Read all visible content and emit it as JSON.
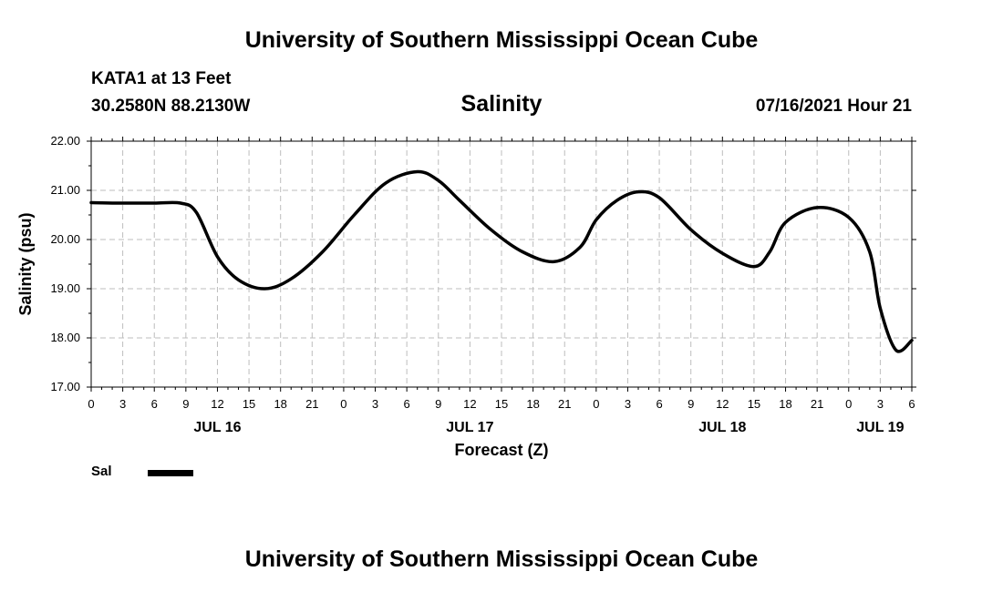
{
  "header": {
    "top_title": "University of Southern Mississippi Ocean Cube",
    "station": "KATA1 at 13 Feet",
    "coords": "30.2580N  88.2130W",
    "chart_title": "Salinity",
    "run_time": "07/16/2021 Hour 21",
    "bottom_title": "University of Southern Mississippi Ocean Cube"
  },
  "legend": {
    "label": "Sal"
  },
  "colors": {
    "line": "#000000",
    "grid": "#bdbdbd",
    "background": "#ffffff"
  },
  "chart_data": {
    "type": "line",
    "title": "Salinity",
    "xlabel": "Forecast (Z)",
    "ylabel": "Salinity (psu)",
    "ylim": [
      17.0,
      22.0
    ],
    "xlim_hours": [
      0,
      78
    ],
    "y_ticks": [
      "17.00",
      "18.00",
      "19.00",
      "20.00",
      "21.00",
      "22.00"
    ],
    "y_tick_values": [
      17,
      18,
      19,
      20,
      21,
      22
    ],
    "x_ticks": [
      "0",
      "3",
      "6",
      "9",
      "12",
      "15",
      "18",
      "21",
      "0",
      "3",
      "6",
      "9",
      "12",
      "15",
      "18",
      "21",
      "0",
      "3",
      "6",
      "9",
      "12",
      "15",
      "18",
      "21",
      "0",
      "3",
      "6"
    ],
    "date_labels": [
      {
        "label": "JUL 16",
        "hour": 12
      },
      {
        "label": "JUL 17",
        "hour": 36
      },
      {
        "label": "JUL 18",
        "hour": 60
      },
      {
        "label": "JUL 19",
        "hour": 75
      }
    ],
    "grid": true,
    "series": [
      {
        "name": "Sal",
        "hours": [
          0,
          3,
          6,
          8.5,
          10,
          12,
          14,
          16.5,
          19,
          22,
          25,
          28,
          31,
          33,
          35,
          38,
          41,
          44,
          46.5,
          48,
          50,
          52,
          54,
          57,
          60,
          63,
          64.5,
          66,
          69,
          72,
          74,
          75,
          76.5,
          78
        ],
        "values": [
          20.75,
          20.74,
          20.74,
          20.74,
          20.55,
          19.65,
          19.18,
          19.0,
          19.2,
          19.75,
          20.5,
          21.15,
          21.38,
          21.2,
          20.8,
          20.2,
          19.75,
          19.55,
          19.85,
          20.4,
          20.8,
          20.97,
          20.85,
          20.2,
          19.72,
          19.45,
          19.75,
          20.35,
          20.65,
          20.45,
          19.75,
          18.6,
          17.75,
          17.95
        ]
      }
    ]
  }
}
